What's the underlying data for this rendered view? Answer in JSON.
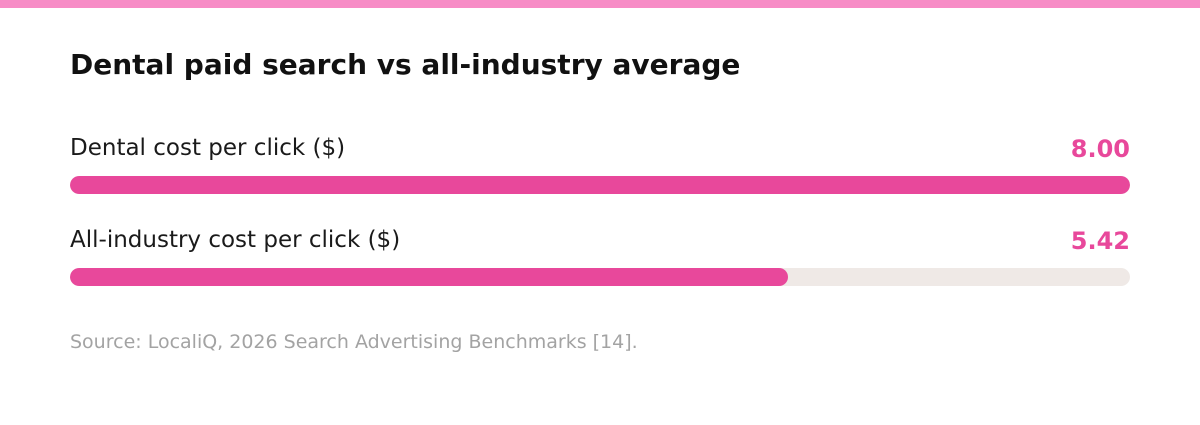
{
  "colors": {
    "stripe": "#f78cc6",
    "bar": "#e8489b",
    "track": "#efe9e6",
    "value_text": "#e8489b"
  },
  "chart_data": {
    "type": "bar",
    "orientation": "horizontal",
    "title": "Dental paid search vs all-industry average",
    "categories": [
      "Dental cost per click ($)",
      "All-industry cost per click ($)"
    ],
    "values": [
      8.0,
      5.42
    ],
    "value_labels": [
      "8.00",
      "5.42"
    ],
    "xlim": [
      0,
      8.0
    ],
    "grid": false,
    "legend": "none",
    "source": "Source: LocaliQ, 2026 Search Advertising Benchmarks [14]."
  }
}
